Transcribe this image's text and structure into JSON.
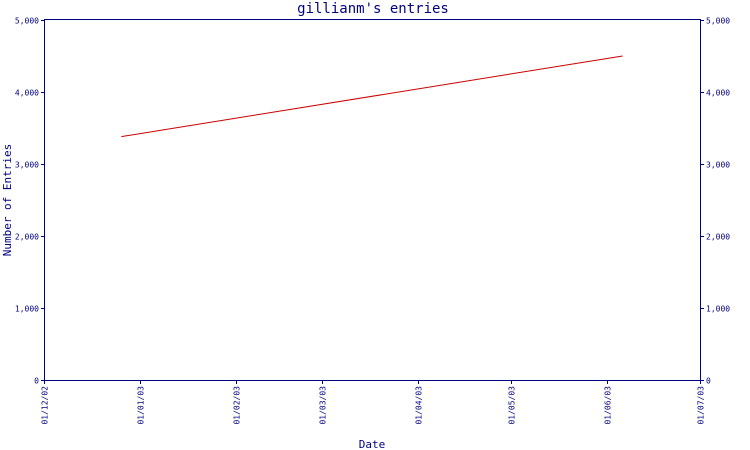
{
  "chart_data": {
    "type": "line",
    "title": "gillianm's entries",
    "xlabel": "Date",
    "ylabel": "Number of Entries",
    "ylim": [
      0,
      5000
    ],
    "y_ticks": [
      0,
      1000,
      2000,
      3000,
      4000,
      5000
    ],
    "y_tick_labels": [
      "0",
      "1,000",
      "2,000",
      "3,000",
      "4,000",
      "5,000"
    ],
    "right_axis_tick_labels": [
      "0",
      "1,000",
      "2,000",
      "3,000",
      "4,000",
      "5,000"
    ],
    "xlim": [
      "2002-12-01",
      "2003-07-01"
    ],
    "x_ticks": [
      "2002-12-01",
      "2003-01-01",
      "2003-02-01",
      "2003-03-01",
      "2003-04-01",
      "2003-05-01",
      "2003-06-01",
      "2003-07-01"
    ],
    "x_tick_labels": [
      "01/12/02",
      "01/01/03",
      "01/02/03",
      "01/03/03",
      "01/04/03",
      "01/05/03",
      "01/06/03",
      "01/07/03"
    ],
    "grid": false,
    "legend": "none",
    "series": [
      {
        "color": "#cc0000",
        "x": [
          "2002-12-26",
          "2003-06-06"
        ],
        "values": [
          3380,
          4500
        ]
      }
    ]
  },
  "colors": {
    "axis": "#000080",
    "series": "#cc0000"
  }
}
